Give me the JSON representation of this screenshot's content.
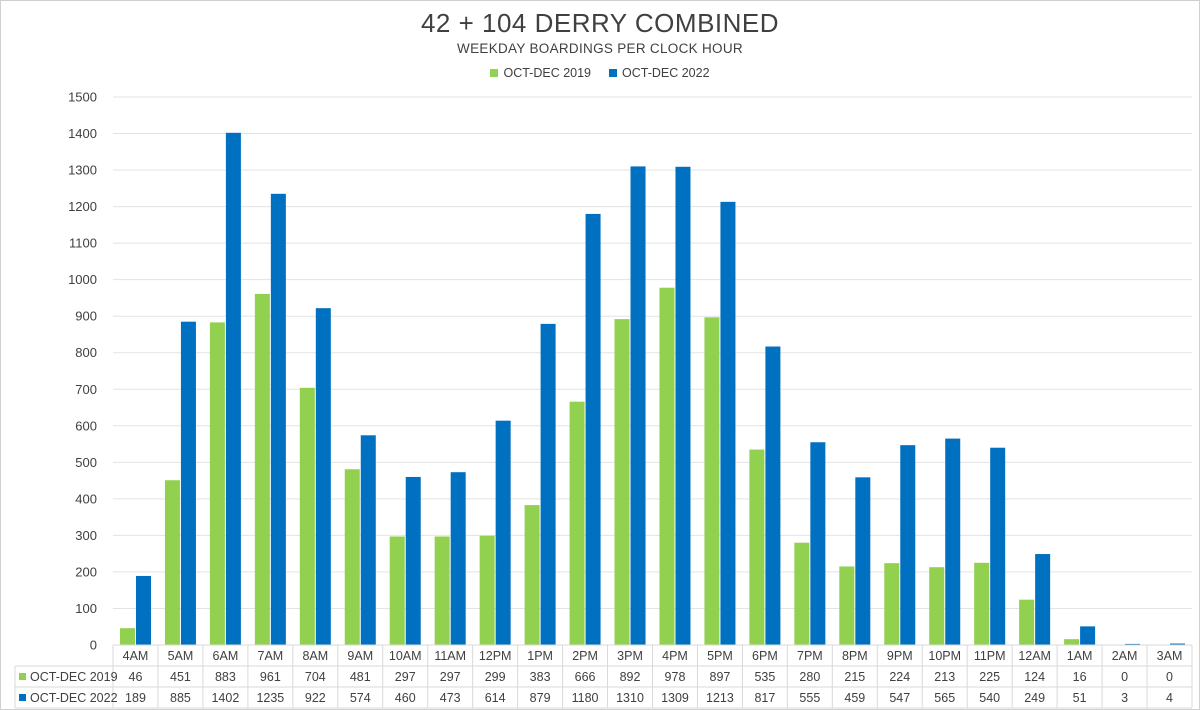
{
  "chart_data": {
    "type": "bar",
    "title": "42 + 104 DERRY COMBINED",
    "subtitle": "WEEKDAY BOARDINGS PER CLOCK HOUR",
    "categories": [
      "4AM",
      "5AM",
      "6AM",
      "7AM",
      "8AM",
      "9AM",
      "10AM",
      "11AM",
      "12PM",
      "1PM",
      "2PM",
      "3PM",
      "4PM",
      "5PM",
      "6PM",
      "7PM",
      "8PM",
      "9PM",
      "10PM",
      "11PM",
      "12AM",
      "1AM",
      "2AM",
      "3AM"
    ],
    "series": [
      {
        "name": "OCT-DEC 2019",
        "color": "#92d050",
        "values": [
          46,
          451,
          883,
          961,
          704,
          481,
          297,
          297,
          299,
          383,
          666,
          892,
          978,
          897,
          535,
          280,
          215,
          224,
          213,
          225,
          124,
          16,
          0,
          0
        ]
      },
      {
        "name": "OCT-DEC 2022",
        "color": "#0070c0",
        "values": [
          189,
          885,
          1402,
          1235,
          922,
          574,
          460,
          473,
          614,
          879,
          1180,
          1310,
          1309,
          1213,
          817,
          555,
          459,
          547,
          565,
          540,
          249,
          51,
          3,
          4
        ]
      }
    ],
    "ylim": [
      0,
      1500
    ],
    "yticks": [
      "0",
      "100",
      "200",
      "300",
      "400",
      "500",
      "600",
      "700",
      "800",
      "900",
      "1000",
      "1100",
      "1200",
      "1300",
      "1400",
      "1500"
    ],
    "grid": true,
    "legend_position": "top",
    "data_table": true
  }
}
